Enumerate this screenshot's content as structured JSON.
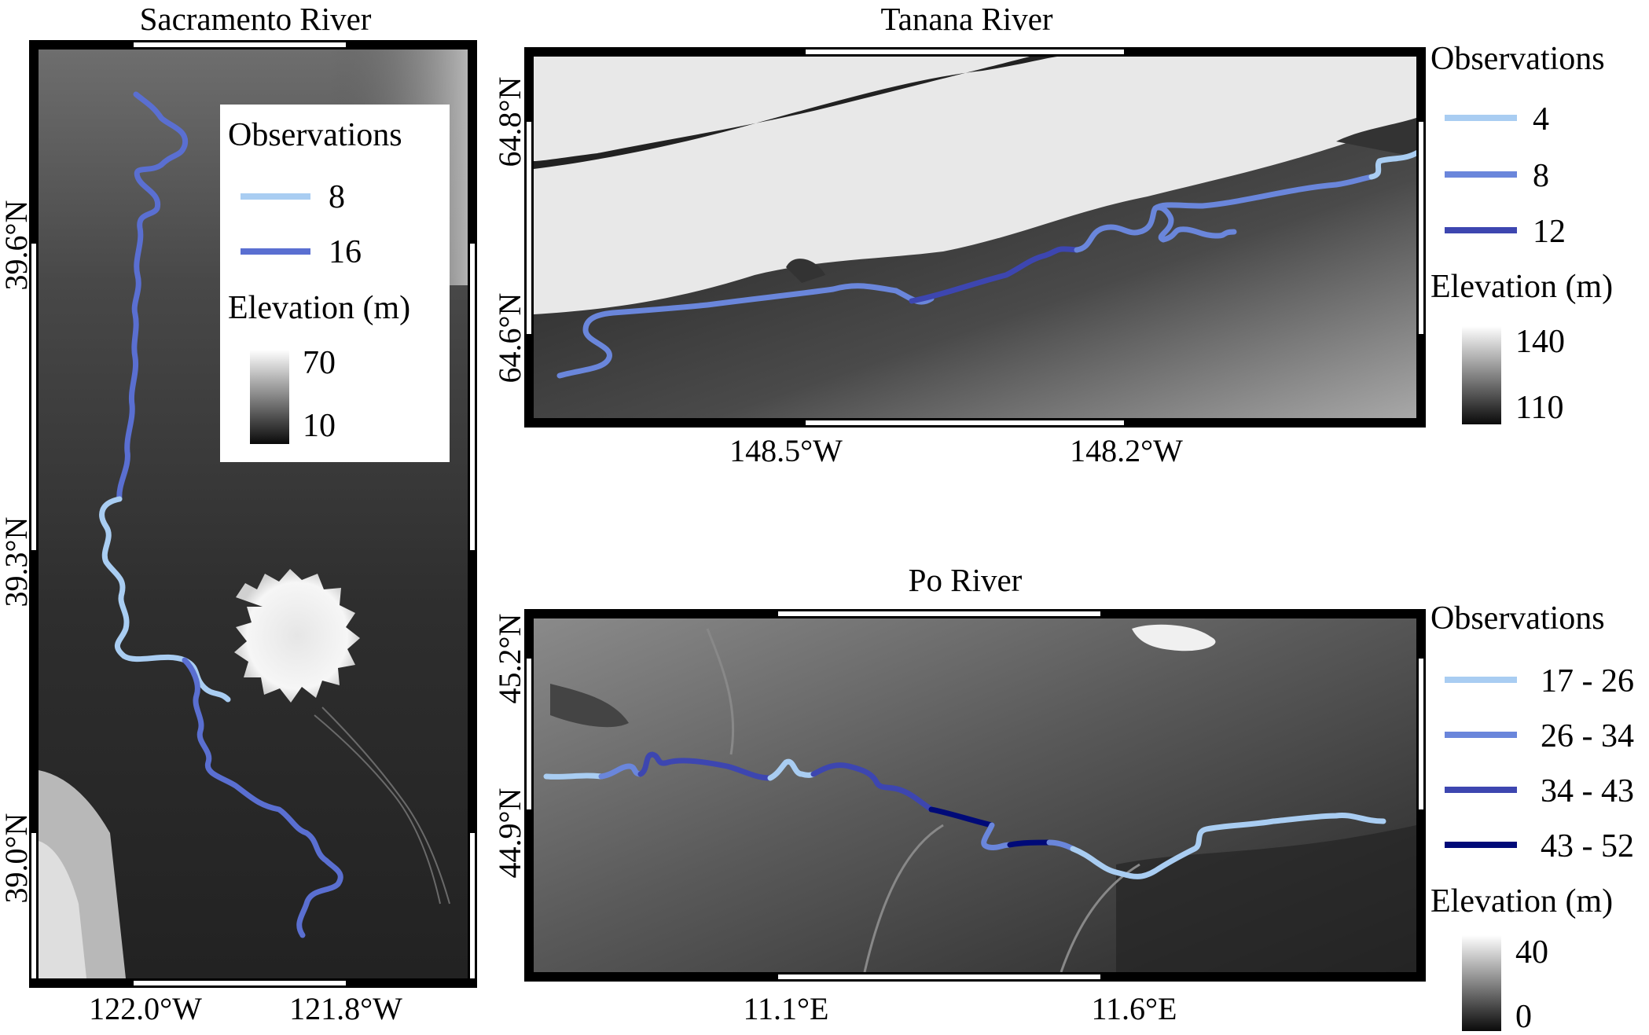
{
  "panels": {
    "sacramento": {
      "title": "Sacramento River",
      "lon_ticks": [
        "122.0°W",
        "121.8°W"
      ],
      "lat_ticks": [
        "39.6°N",
        "39.3°N",
        "39.0°N"
      ],
      "legend": {
        "obs_title": "Observations",
        "obs_items": [
          {
            "label": "8",
            "color": "#a9cdf2"
          },
          {
            "label": "16",
            "color": "#5a6fd1"
          }
        ],
        "elev_title": "Elevation (m)",
        "elev_max": "70",
        "elev_min": "10"
      }
    },
    "tanana": {
      "title": "Tanana River",
      "lon_ticks": [
        "148.5°W",
        "148.2°W"
      ],
      "lat_ticks": [
        "64.8°N",
        "64.6°N"
      ],
      "legend": {
        "obs_title": "Observations",
        "obs_items": [
          {
            "label": "4",
            "color": "#a9cdf2"
          },
          {
            "label": "8",
            "color": "#6a86db"
          },
          {
            "label": "12",
            "color": "#3d46b0"
          }
        ],
        "elev_title": "Elevation (m)",
        "elev_max": "140",
        "elev_min": "110"
      }
    },
    "po": {
      "title": "Po River",
      "lon_ticks": [
        "11.1°E",
        "11.6°E"
      ],
      "lat_ticks": [
        "45.2°N",
        "44.9°N"
      ],
      "legend": {
        "obs_title": "Observations",
        "obs_items": [
          {
            "label": "17 - 26",
            "color": "#a9cdf2"
          },
          {
            "label": "26 - 34",
            "color": "#6a86db"
          },
          {
            "label": "34 - 43",
            "color": "#3d46b0"
          },
          {
            "label": "43 - 52",
            "color": "#000a78"
          }
        ],
        "elev_title": "Elevation (m)",
        "elev_max": "40",
        "elev_min": "0"
      }
    }
  }
}
